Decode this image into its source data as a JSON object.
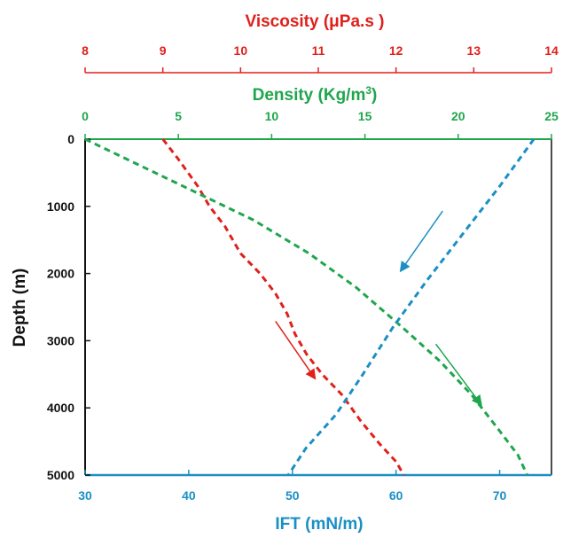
{
  "chart_data": {
    "type": "line",
    "depth_axis": {
      "label": "Depth (m)",
      "range": [
        0,
        5000
      ],
      "ticks": [
        "0",
        "1000",
        "2000",
        "3000",
        "4000",
        "5000"
      ],
      "inverted": true
    },
    "axes": {
      "viscosity": {
        "label": "Viscosity (μPa.s )",
        "range": [
          8,
          14
        ],
        "ticks": [
          "8",
          "9",
          "10",
          "11",
          "12",
          "13",
          "14"
        ],
        "position": "top-outer",
        "color": "#e0201b"
      },
      "density": {
        "label": "Density (Kg/m3)",
        "label_main": "Density (Kg/m",
        "label_sup": "3",
        "label_end": ")",
        "range": [
          0,
          25
        ],
        "ticks": [
          "0",
          "5",
          "10",
          "15",
          "20",
          "25"
        ],
        "position": "top-inner",
        "color": "#1fa64d"
      },
      "ift": {
        "label": "IFT (mN/m)",
        "range": [
          30,
          75
        ],
        "ticks": [
          "30",
          "40",
          "50",
          "60",
          "70"
        ],
        "position": "bottom",
        "color": "#1b8fc4"
      }
    },
    "series": [
      {
        "axis": "viscosity",
        "color": "#e0201b",
        "points": [
          [
            9.0,
            0
          ],
          [
            9.2,
            300
          ],
          [
            9.45,
            700
          ],
          [
            9.6,
            1000
          ],
          [
            9.8,
            1300
          ],
          [
            10.0,
            1700
          ],
          [
            10.25,
            2000
          ],
          [
            10.45,
            2300
          ],
          [
            10.6,
            2600
          ],
          [
            10.7,
            2900
          ],
          [
            10.85,
            3200
          ],
          [
            11.05,
            3500
          ],
          [
            11.3,
            3800
          ],
          [
            11.55,
            4200
          ],
          [
            11.8,
            4550
          ],
          [
            12.0,
            4800
          ],
          [
            12.1,
            5000
          ]
        ]
      },
      {
        "axis": "density",
        "color": "#1fa64d",
        "points": [
          [
            0,
            0
          ],
          [
            3,
            400
          ],
          [
            6,
            800
          ],
          [
            9,
            1200
          ],
          [
            12,
            1700
          ],
          [
            14.5,
            2200
          ],
          [
            17,
            2800
          ],
          [
            19,
            3300
          ],
          [
            20.7,
            3800
          ],
          [
            22.1,
            4300
          ],
          [
            23.2,
            4700
          ],
          [
            23.7,
            5000
          ]
        ]
      },
      {
        "axis": "ift",
        "color": "#1b8fc4",
        "points": [
          [
            73.3,
            0
          ],
          [
            70,
            700
          ],
          [
            66.5,
            1400
          ],
          [
            63,
            2100
          ],
          [
            59.7,
            2800
          ],
          [
            56.8,
            3500
          ],
          [
            54.2,
            4100
          ],
          [
            51.3,
            4600
          ],
          [
            49.6,
            5000
          ]
        ]
      }
    ],
    "arrows": [
      {
        "color": "#1b8fc4",
        "from": [
          64.5,
          1070
        ],
        "to": [
          60.5,
          1950
        ]
      },
      {
        "color": "#e0201b",
        "from": [
          10.45,
          2710
        ],
        "to": [
          10.95,
          3550
        ]
      },
      {
        "color": "#1fa64d",
        "from": [
          18.8,
          3050
        ],
        "to": [
          21.2,
          3940
        ]
      }
    ],
    "grid": false,
    "legend": "none"
  }
}
